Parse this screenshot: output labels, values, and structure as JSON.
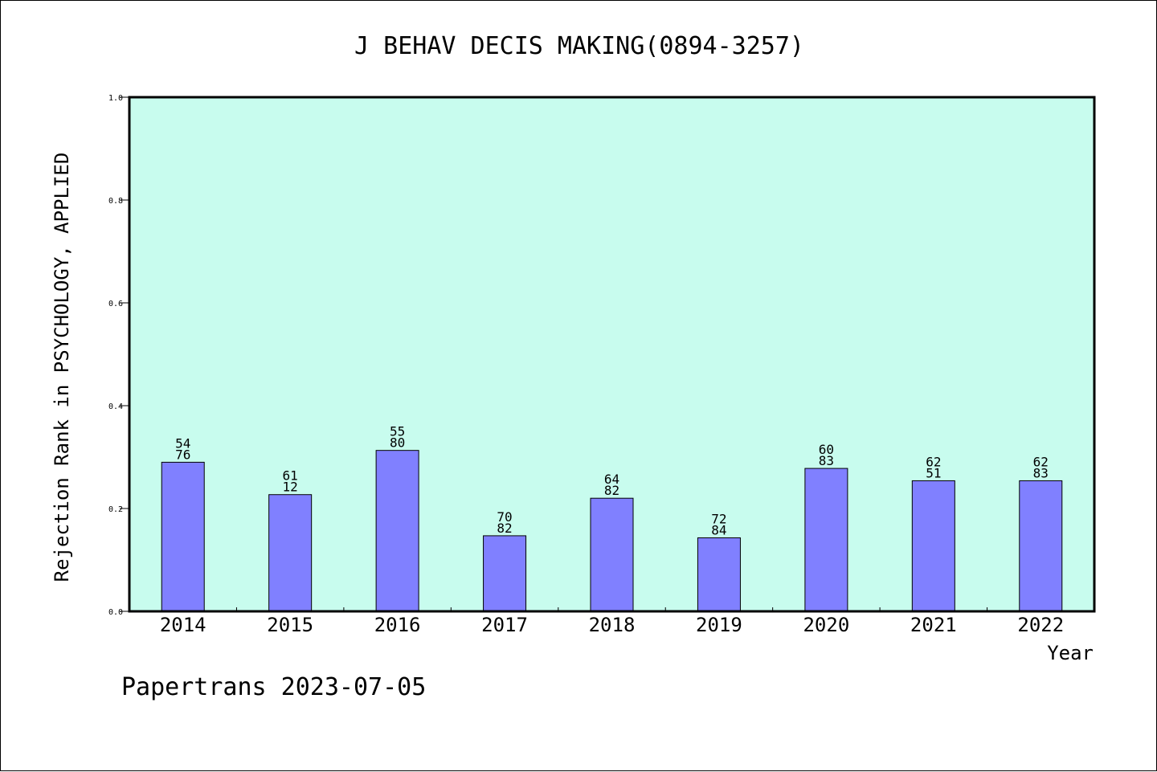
{
  "chart_data": {
    "type": "bar",
    "title": "J BEHAV DECIS MAKING(0894-3257)",
    "xlabel": "Year",
    "ylabel": "Rejection Rank in PSYCHOLOGY, APPLIED",
    "ylim": [
      0,
      1.0
    ],
    "yticks": [
      "0.0",
      "0.2",
      "0.4",
      "0.6",
      "0.8",
      "1.0"
    ],
    "grid": false,
    "categories": [
      "2014",
      "2015",
      "2016",
      "2017",
      "2018",
      "2019",
      "2020",
      "2021",
      "2022"
    ],
    "values": [
      0.29,
      0.227,
      0.313,
      0.147,
      0.22,
      0.143,
      0.278,
      0.254,
      0.254
    ],
    "bar_labels": [
      [
        "54",
        "76"
      ],
      [
        "61",
        "12"
      ],
      [
        "55",
        "80"
      ],
      [
        "70",
        "82"
      ],
      [
        "64",
        "82"
      ],
      [
        "72",
        "84"
      ],
      [
        "60",
        "83"
      ],
      [
        "62",
        "51"
      ],
      [
        "62",
        "83"
      ]
    ],
    "colors": {
      "plot_background": "#c8fcee",
      "bar_fill": "#8080ff",
      "bar_stroke": "#000000"
    }
  },
  "footer": {
    "text": "Papertrans 2023-07-05"
  }
}
